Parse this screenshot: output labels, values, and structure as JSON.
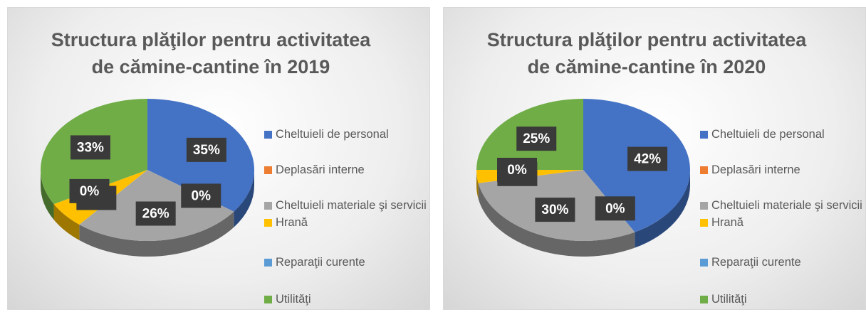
{
  "chart_data": [
    {
      "type": "pie",
      "title": "Structura plăţilor pentru activitatea de cămine-cantine în 2019",
      "categories": [
        "Cheltuieli de personal",
        "Deplasări interne",
        "Cheltuieli materiale şi servicii",
        "Hrană",
        "Reparaţii curente",
        "Utilităţi"
      ],
      "values": [
        35,
        0,
        26,
        6,
        0,
        33
      ],
      "value_labels": [
        "35%",
        "0%",
        "26%",
        "6%",
        "0%",
        "33%"
      ],
      "colors": [
        "#4472c4",
        "#ed7d31",
        "#a5a5a5",
        "#ffc000",
        "#5b9bd5",
        "#70ad47"
      ],
      "legend": "right"
    },
    {
      "type": "pie",
      "title": "Structura plăţilor pentru activitatea de cămine-cantine în 2020",
      "categories": [
        "Cheltuieli de personal",
        "Deplasări interne",
        "Cheltuieli materiale şi servicii",
        "Hrană",
        "Reparaţii curente",
        "Utilităţi"
      ],
      "values": [
        42,
        0,
        30,
        3,
        0,
        25
      ],
      "value_labels": [
        "42%",
        "0%",
        "30%",
        "3%",
        "0%",
        "25%"
      ],
      "colors": [
        "#4472c4",
        "#ed7d31",
        "#a5a5a5",
        "#ffc000",
        "#5b9bd5",
        "#70ad47"
      ],
      "legend": "right"
    }
  ]
}
